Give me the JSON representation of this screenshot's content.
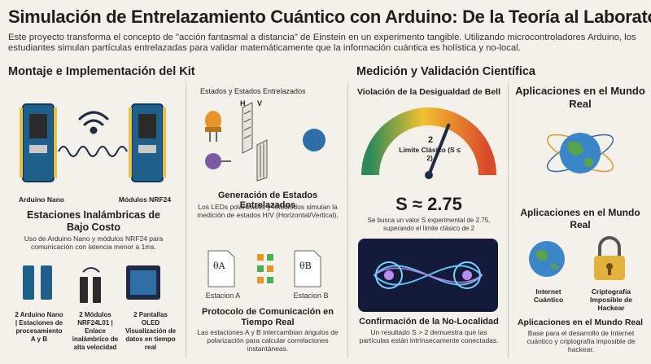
{
  "header": {
    "title": "Simulación de Entrelazamiento Cuántico con Arduino: De la Teoría al Laboratorio",
    "subtitle": "Este proyecto transforma el concepto de \"acción fantasmal a distancia\" de Einstein en un experimento tangible. Utilizando microcontroladores Arduino, los estudiantes simulan partículas entrelazadas para validar matemáticamente que la información cuántica es holística y no-local."
  },
  "left": {
    "heading": "Montaje e Implementación del Kit",
    "board_left_label": "Arduino Nano",
    "board_right_label": "Módulos NRF24",
    "stations_title": "Estaciones Inalámbricas de Bajo Costo",
    "stations_desc": "Uso de Arduino Nano y módulos NRF24 para comunicación con latencia menor a 1ms.",
    "parts": [
      {
        "label": "2 Arduino Nano | Estaciones de procesamiento A y B"
      },
      {
        "label": "2 Módulos NRF24L01 | Enlace inalámbrico de alta velocidad"
      },
      {
        "label": "2 Pantallas OLED Visualización de datos en tiempo real"
      }
    ]
  },
  "middle": {
    "states_label": "Estados y Estados Entrelazados",
    "filter_h": "H",
    "filter_v": "V",
    "gen_title": "Generación de Estados Entrelazados",
    "gen_desc": "Los LEDs polarizados y fotodiodos simulan la medición de estados H/V (Horizontal/Vertical).",
    "doc_a_symbol": "θA",
    "doc_b_symbol": "θB",
    "station_a": "Estacion A",
    "station_b": "Estacion B",
    "protocol_title": "Protocolo de Comunicación en Tiempo Real",
    "protocol_desc": "Las estaciones A y B intercambian ángulos de polarización para calcular correlaciones instantáneas."
  },
  "right_center": {
    "heading": "Medición y Validación Científica",
    "bell_title": "Violación de la Desigualdad de Bell",
    "gauge_value": "2",
    "gauge_value_num": 2,
    "gauge_label": "Límite Clásico (S ≤ 2)",
    "s_value": "S ≈ 2.75",
    "s_desc": "Se busca un valor S experimental de 2.75, superando el límite clásico de 2",
    "nonlocal_title": "Confirmación de la No-Localidad",
    "nonlocal_desc": "Un resultado S > 2 demuestra que las partículas están intrínsecamente conectadas."
  },
  "far_right": {
    "heading": "Aplicaciones en el Mundo Real",
    "mid_heading": "Aplicaciones en el Mundo Real",
    "internet_label": "Internet Cuántico",
    "crypto_label": "Criptografía Imposible de Hackear",
    "bottom_title": "Aplicaciones en el Mundo Real",
    "bottom_desc": "Base para el desarrollo de Internet cuántico y criptografía imposible de hackear."
  },
  "colors": {
    "board_blue": "#1f5f8b",
    "led_orange": "#e6952a",
    "led_purple": "#7d5aa6",
    "gauge_green": "#4caf50",
    "gauge_red": "#d94a2b",
    "accent_dark": "#1f2a44"
  }
}
